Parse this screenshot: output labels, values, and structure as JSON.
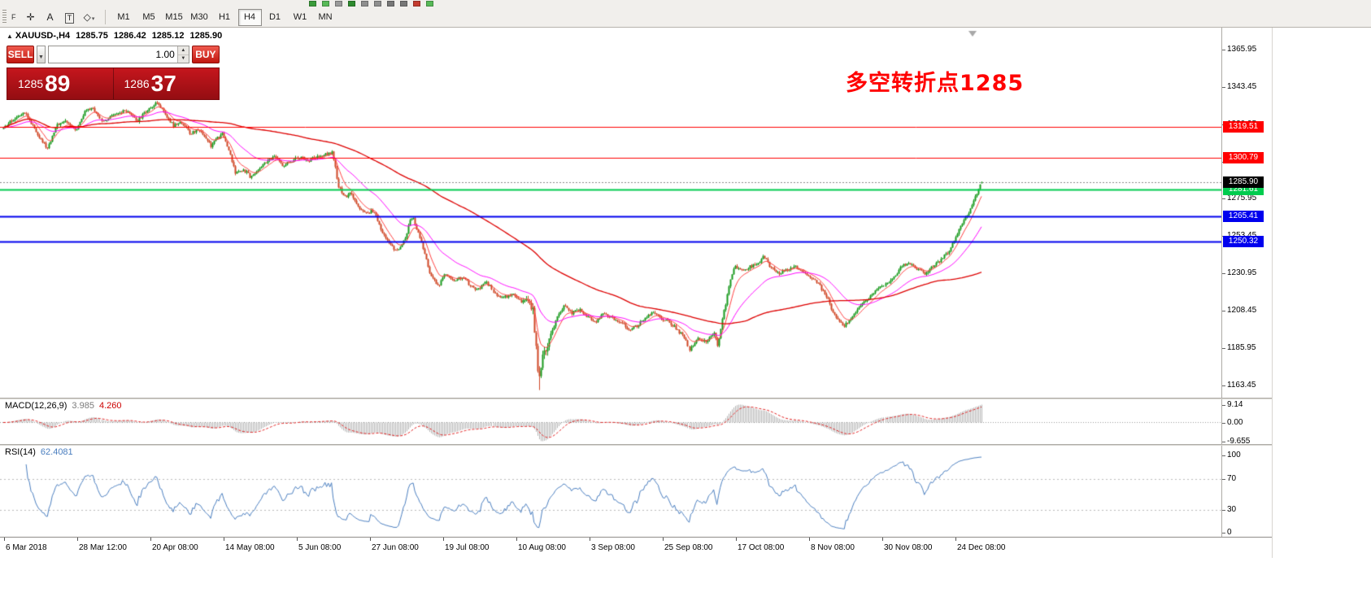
{
  "menu_strip": {
    "partial_label": "F",
    "mini_icons": [
      {
        "name": "new-order-icon",
        "color": "#3a9c3a"
      },
      {
        "name": "chart-window-icon",
        "color": "#57b957"
      },
      {
        "name": "profiles-icon",
        "color": "#9a9a9a"
      },
      {
        "name": "candles-icon",
        "color": "#2e8b2e"
      },
      {
        "name": "bar-chart-icon",
        "color": "#8f8f8f"
      },
      {
        "name": "line-chart-icon",
        "color": "#8f8f8f"
      },
      {
        "name": "zoom-in-icon",
        "color": "#777777"
      },
      {
        "name": "zoom-out-icon",
        "color": "#777777"
      },
      {
        "name": "autotrading-icon",
        "color": "#c43b2f"
      },
      {
        "name": "indicators-icon",
        "color": "#57b957"
      }
    ]
  },
  "toolbar": {
    "tools": [
      {
        "name": "crosshair",
        "glyph": "✛",
        "dropdown": false
      },
      {
        "name": "text",
        "glyph": "A",
        "dropdown": false
      },
      {
        "name": "text-label",
        "glyph": "T",
        "dropdown": false,
        "boxed": true
      },
      {
        "name": "objects",
        "glyph": "◇",
        "dropdown": true
      }
    ],
    "timeframes": [
      "M1",
      "M5",
      "M15",
      "M30",
      "H1",
      "H4",
      "D1",
      "W1",
      "MN"
    ],
    "active_timeframe": "H4"
  },
  "chart_header": {
    "symbol": "XAUUSD-,H4",
    "open": "1285.75",
    "high": "1286.42",
    "low": "1285.12",
    "close": "1285.90"
  },
  "annotation": {
    "text": "多空转折点1285",
    "color": "#ff0000"
  },
  "trade_panel": {
    "sell_label": "SELL",
    "buy_label": "BUY",
    "lot_value": "1.00",
    "sell_price_main": "1285",
    "sell_price_pips": "89",
    "buy_price_main": "1286",
    "buy_price_pips": "37"
  },
  "chart_data": {
    "type": "candlestick",
    "title": "XAUUSD- H4",
    "candle_count": 600,
    "current_ohlc": {
      "open": 1285.75,
      "high": 1286.42,
      "low": 1285.12,
      "close": 1285.9
    },
    "candle_colors": {
      "up": "#18991c",
      "down": "#cf4625"
    },
    "price_anchors": [
      [
        0,
        1318
      ],
      [
        0.008,
        1323
      ],
      [
        0.021,
        1329
      ],
      [
        0.033,
        1317
      ],
      [
        0.045,
        1306
      ],
      [
        0.054,
        1320
      ],
      [
        0.062,
        1323
      ],
      [
        0.075,
        1318
      ],
      [
        0.083,
        1328
      ],
      [
        0.091,
        1331
      ],
      [
        0.1,
        1323
      ],
      [
        0.112,
        1326
      ],
      [
        0.124,
        1329
      ],
      [
        0.137,
        1323
      ],
      [
        0.149,
        1331
      ],
      [
        0.158,
        1334
      ],
      [
        0.166,
        1326
      ],
      [
        0.174,
        1320
      ],
      [
        0.183,
        1322
      ],
      [
        0.191,
        1315
      ],
      [
        0.199,
        1318
      ],
      [
        0.207,
        1313
      ],
      [
        0.212,
        1308
      ],
      [
        0.216,
        1311
      ],
      [
        0.224,
        1315
      ],
      [
        0.232,
        1303
      ],
      [
        0.237,
        1291
      ],
      [
        0.245,
        1294
      ],
      [
        0.253,
        1289
      ],
      [
        0.261,
        1294
      ],
      [
        0.27,
        1299
      ],
      [
        0.278,
        1301
      ],
      [
        0.286,
        1296
      ],
      [
        0.295,
        1299
      ],
      [
        0.303,
        1301
      ],
      [
        0.311,
        1299
      ],
      [
        0.32,
        1301
      ],
      [
        0.328,
        1303
      ],
      [
        0.336,
        1304
      ],
      [
        0.342,
        1284
      ],
      [
        0.349,
        1277
      ],
      [
        0.355,
        1279
      ],
      [
        0.361,
        1272
      ],
      [
        0.369,
        1267
      ],
      [
        0.378,
        1269
      ],
      [
        0.386,
        1257
      ],
      [
        0.394,
        1250
      ],
      [
        0.402,
        1244
      ],
      [
        0.411,
        1252
      ],
      [
        0.415,
        1262
      ],
      [
        0.419,
        1264
      ],
      [
        0.427,
        1250
      ],
      [
        0.436,
        1231
      ],
      [
        0.444,
        1223
      ],
      [
        0.452,
        1231
      ],
      [
        0.461,
        1226
      ],
      [
        0.469,
        1229
      ],
      [
        0.477,
        1224
      ],
      [
        0.485,
        1221
      ],
      [
        0.494,
        1226
      ],
      [
        0.502,
        1219
      ],
      [
        0.51,
        1216
      ],
      [
        0.519,
        1219
      ],
      [
        0.527,
        1214
      ],
      [
        0.535,
        1216
      ],
      [
        0.541,
        1209
      ],
      [
        0.544,
        1187
      ],
      [
        0.546,
        1168
      ],
      [
        0.552,
        1183
      ],
      [
        0.558,
        1192
      ],
      [
        0.564,
        1202
      ],
      [
        0.573,
        1211
      ],
      [
        0.581,
        1207
      ],
      [
        0.589,
        1209
      ],
      [
        0.598,
        1204
      ],
      [
        0.606,
        1202
      ],
      [
        0.614,
        1207
      ],
      [
        0.622,
        1204
      ],
      [
        0.631,
        1202
      ],
      [
        0.639,
        1197
      ],
      [
        0.647,
        1199
      ],
      [
        0.656,
        1204
      ],
      [
        0.664,
        1207
      ],
      [
        0.672,
        1204
      ],
      [
        0.68,
        1202
      ],
      [
        0.689,
        1197
      ],
      [
        0.697,
        1192
      ],
      [
        0.701,
        1185
      ],
      [
        0.71,
        1192
      ],
      [
        0.718,
        1190
      ],
      [
        0.726,
        1195
      ],
      [
        0.73,
        1187
      ],
      [
        0.734,
        1202
      ],
      [
        0.739,
        1216
      ],
      [
        0.743,
        1228
      ],
      [
        0.747,
        1235
      ],
      [
        0.755,
        1233
      ],
      [
        0.763,
        1235
      ],
      [
        0.772,
        1237
      ],
      [
        0.776,
        1242
      ],
      [
        0.784,
        1235
      ],
      [
        0.793,
        1231
      ],
      [
        0.801,
        1233
      ],
      [
        0.809,
        1235
      ],
      [
        0.817,
        1231
      ],
      [
        0.826,
        1228
      ],
      [
        0.834,
        1224
      ],
      [
        0.842,
        1216
      ],
      [
        0.851,
        1204
      ],
      [
        0.859,
        1199
      ],
      [
        0.867,
        1204
      ],
      [
        0.876,
        1211
      ],
      [
        0.884,
        1216
      ],
      [
        0.892,
        1221
      ],
      [
        0.9,
        1224
      ],
      [
        0.909,
        1228
      ],
      [
        0.917,
        1235
      ],
      [
        0.925,
        1237
      ],
      [
        0.934,
        1233
      ],
      [
        0.942,
        1231
      ],
      [
        0.95,
        1235
      ],
      [
        0.959,
        1240
      ],
      [
        0.967,
        1245
      ],
      [
        0.975,
        1255
      ],
      [
        0.983,
        1264
      ],
      [
        0.99,
        1272
      ],
      [
        0.996,
        1281
      ],
      [
        1,
        1285.9
      ]
    ],
    "y_axis": {
      "top_price": 1379.2,
      "bottom_price": 1156.0,
      "tick_labels": [
        "1365.95",
        "1343.45",
        "1320.95",
        "1298.45",
        "1275.95",
        "1253.45",
        "1230.95",
        "1208.45",
        "1185.95",
        "1163.45"
      ]
    },
    "x_axis": {
      "tick_labels": [
        "6 Mar 2018",
        "28 Mar 12:00",
        "20 Apr 08:00",
        "14 May 08:00",
        "5 Jun 08:00",
        "27 Jun 08:00",
        "19 Jul 08:00",
        "10 Aug 08:00",
        "3 Sep 08:00",
        "25 Sep 08:00",
        "17 Oct 08:00",
        "8 Nov 08:00",
        "30 Nov 08:00",
        "24 Dec 08:00"
      ]
    },
    "horizontal_lines": [
      {
        "price": 1319.51,
        "label": "1319.51",
        "color": "#ff0000",
        "width": 1
      },
      {
        "price": 1300.79,
        "label": "1300.79",
        "color": "#ff0000",
        "width": 1
      },
      {
        "price": 1281.61,
        "label": "1281.61",
        "color": "#00cc4e",
        "width": 2
      },
      {
        "price": 1265.41,
        "label": "1265.41",
        "color": "#0000ee",
        "width": 2
      },
      {
        "price": 1250.32,
        "label": "1250.32",
        "color": "#0000ee",
        "width": 2
      }
    ],
    "current_price": {
      "value": 1285.9,
      "label": "1285.90",
      "badge_color": "#000000"
    },
    "moving_averages": [
      {
        "name": "ma-fast",
        "type": "ema",
        "period": 9,
        "color": "#ff4040"
      },
      {
        "name": "ma-mid",
        "type": "ema",
        "period": 34,
        "color": "#ff00ff"
      },
      {
        "name": "ma-slow",
        "type": "sma",
        "period": 130,
        "color": "#dd0000"
      }
    ],
    "indicators": [
      {
        "name": "macd",
        "label": "MACD(12,26,9)",
        "values_text": [
          "3.985",
          "4.260"
        ],
        "fast": 12,
        "slow": 26,
        "signal": 9,
        "axis_labels": [
          "9.14",
          "0.00",
          "-9.655"
        ],
        "histogram_color": "#b4b4b4",
        "signal_color": "#e02020"
      },
      {
        "name": "rsi",
        "label": "RSI(14)",
        "value_text": "62.4081",
        "period": 14,
        "axis_labels": [
          "100",
          "70",
          "30",
          "0"
        ],
        "levels": [
          70,
          30
        ],
        "color": "#4a7ebf"
      }
    ]
  }
}
